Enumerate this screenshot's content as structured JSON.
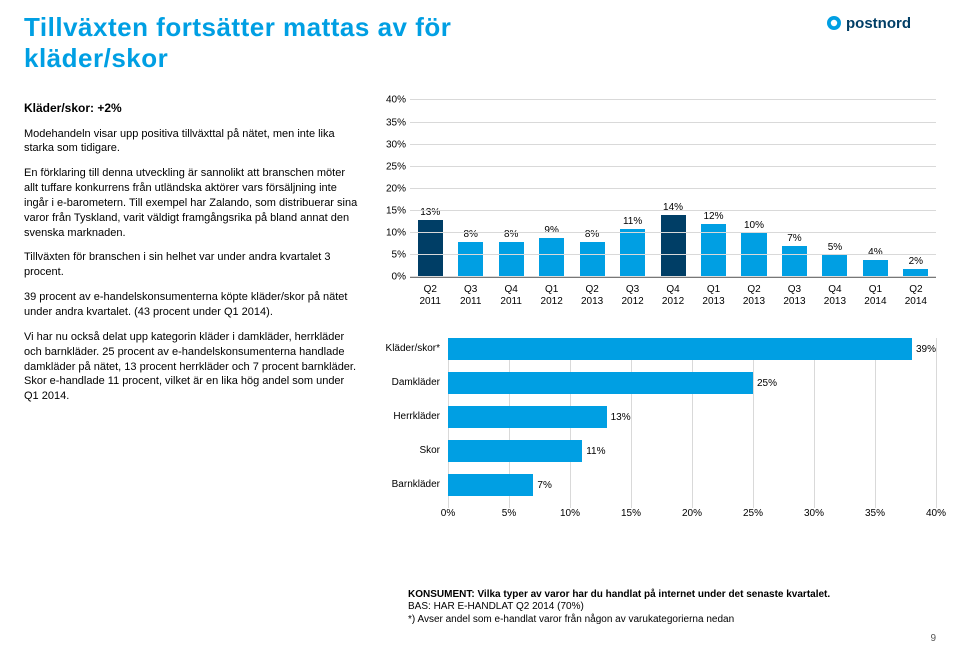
{
  "brand": {
    "name": "postnord",
    "blue": "#009fe3",
    "dark": "#003e66"
  },
  "title": "Tillväxten fortsätter mattas av för kläder/skor",
  "left": {
    "subhead": "Kläder/skor: +2%",
    "p1": "Modehandeln visar upp positiva tillväxttal på nätet, men inte lika starka som tidigare.",
    "p2": "En förklaring till denna utveckling är sannolikt att branschen möter allt tuffare konkurrens från utländska aktörer vars försäljning inte ingår i e-barometern. Till exempel har Zalando, som distribuerar sina varor från Tyskland, varit väldigt framgångsrika på bland annat den svenska marknaden.",
    "p3": "Tillväxten för branschen i sin helhet var under andra kvartalet 3 procent.",
    "p4": "39 procent av e-handelskonsumenterna köpte kläder/skor på nätet under andra kvartalet. (43 procent under Q1 2014).",
    "p5": "Vi har nu också delat upp kategorin kläder i damkläder, herrkläder och barnkläder. 25 procent av e-handelskonsumenterna handlade damkläder på nätet, 13 procent herrkläder och 7 procent barnkläder. Skor e-handlade 11 procent, vilket är en lika hög andel som under Q1 2014."
  },
  "bar": {
    "type": "bar",
    "ylim": [
      0,
      40
    ],
    "ytick_step": 5,
    "yticks": [
      "0%",
      "5%",
      "10%",
      "15%",
      "20%",
      "25%",
      "30%",
      "35%",
      "40%"
    ],
    "categories": [
      {
        "q": "Q2",
        "y": "2011"
      },
      {
        "q": "Q3",
        "y": "2011"
      },
      {
        "q": "Q4",
        "y": "2011"
      },
      {
        "q": "Q1",
        "y": "2012"
      },
      {
        "q": "Q2",
        "y": "2013"
      },
      {
        "q": "Q3",
        "y": "2012"
      },
      {
        "q": "Q4",
        "y": "2012"
      },
      {
        "q": "Q1",
        "y": "2013"
      },
      {
        "q": "Q2",
        "y": "2013"
      },
      {
        "q": "Q3",
        "y": "2013"
      },
      {
        "q": "Q4",
        "y": "2013"
      },
      {
        "q": "Q1",
        "y": "2014"
      },
      {
        "q": "Q2",
        "y": "2014"
      }
    ],
    "values": [
      13,
      8,
      8,
      9,
      8,
      11,
      14,
      12,
      10,
      7,
      5,
      4,
      2
    ],
    "value_labels": [
      "13%",
      "8%",
      "8%",
      "9%",
      "8%",
      "11%",
      "14%",
      "12%",
      "10%",
      "7%",
      "5%",
      "4%",
      "2%"
    ],
    "bar_color": "#009fe3",
    "bar_color_highlight": "#003e66",
    "highlight_indices": [
      0,
      6
    ],
    "grid_color": "#d9d9d9",
    "axis_color": "#777777",
    "fontsize": 10
  },
  "hbar": {
    "type": "hbar",
    "xlim": [
      0,
      40
    ],
    "xtick_step": 5,
    "xticks": [
      "0%",
      "5%",
      "10%",
      "15%",
      "20%",
      "25%",
      "30%",
      "35%",
      "40%"
    ],
    "rows": [
      {
        "label": "Kläder/skor*",
        "value": 39,
        "vlabel": "39%"
      },
      {
        "label": "Damkläder",
        "value": 25,
        "vlabel": "25%"
      },
      {
        "label": "Herrkläder",
        "value": 13,
        "vlabel": "13%"
      },
      {
        "label": "Skor",
        "value": 11,
        "vlabel": "11%"
      },
      {
        "label": "Barnkläder",
        "value": 7,
        "vlabel": "7%"
      }
    ],
    "bar_color": "#009fe3",
    "grid_color": "#d9d9d9",
    "fontsize": 10
  },
  "footnote": {
    "bold": "KONSUMENT: Vilka typer av varor har du handlat på internet under det senaste kvartalet.",
    "line2": "BAS: HAR E-HANDLAT Q2 2014 (70%)",
    "line3": "*) Avser andel som e-handlat varor från någon av varukategorierna nedan"
  },
  "page": "9"
}
